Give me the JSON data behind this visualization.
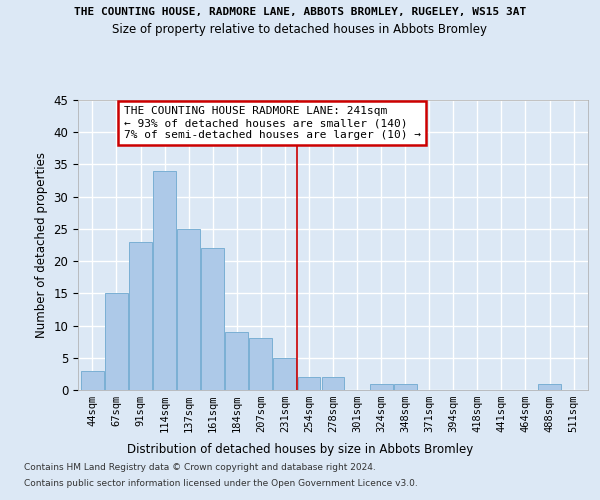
{
  "title": "THE COUNTING HOUSE, RADMORE LANE, ABBOTS BROMLEY, RUGELEY, WS15 3AT",
  "subtitle": "Size of property relative to detached houses in Abbots Bromley",
  "xlabel": "Distribution of detached houses by size in Abbots Bromley",
  "ylabel": "Number of detached properties",
  "categories": [
    "44sqm",
    "67sqm",
    "91sqm",
    "114sqm",
    "137sqm",
    "161sqm",
    "184sqm",
    "207sqm",
    "231sqm",
    "254sqm",
    "278sqm",
    "301sqm",
    "324sqm",
    "348sqm",
    "371sqm",
    "394sqm",
    "418sqm",
    "441sqm",
    "464sqm",
    "488sqm",
    "511sqm"
  ],
  "values": [
    3,
    15,
    23,
    34,
    25,
    22,
    9,
    8,
    5,
    2,
    2,
    0,
    1,
    1,
    0,
    0,
    0,
    0,
    0,
    1,
    0
  ],
  "bar_color": "#adc9e8",
  "bar_edge_color": "#7aafd4",
  "background_color": "#dce8f5",
  "grid_color": "#ffffff",
  "vline_x": 8.5,
  "vline_color": "#cc0000",
  "annotation_text": "THE COUNTING HOUSE RADMORE LANE: 241sqm\n← 93% of detached houses are smaller (140)\n7% of semi-detached houses are larger (10) →",
  "annotation_box_color": "#ffffff",
  "annotation_box_edge_color": "#cc0000",
  "ylim": [
    0,
    45
  ],
  "yticks": [
    0,
    5,
    10,
    15,
    20,
    25,
    30,
    35,
    40,
    45
  ],
  "footer_line1": "Contains HM Land Registry data © Crown copyright and database right 2024.",
  "footer_line2": "Contains public sector information licensed under the Open Government Licence v3.0."
}
